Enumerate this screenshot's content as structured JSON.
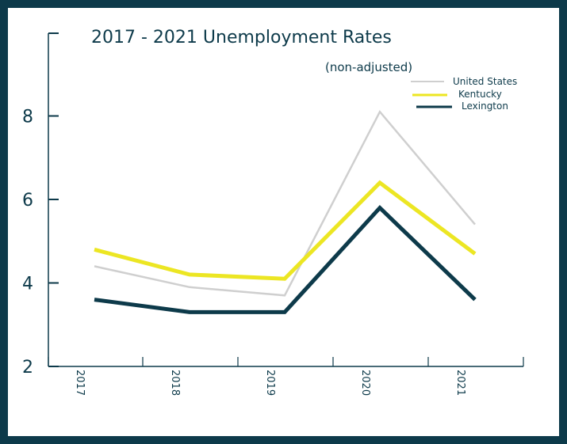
{
  "chart_data": {
    "type": "line",
    "title": "2017 - 2021 Unemployment Rates",
    "subtitle": "(non-adjusted)",
    "categories": [
      "2017",
      "2018",
      "2019",
      "2020",
      "2021"
    ],
    "ylim": [
      2,
      10
    ],
    "yticks": [
      "2",
      "4",
      "6",
      "8"
    ],
    "grid": false,
    "legend_position": "top-right",
    "series": [
      {
        "name": "United States",
        "values": [
          4.4,
          3.9,
          3.7,
          8.1,
          5.4
        ],
        "color": "#cfcfcf"
      },
      {
        "name": "Kentucky",
        "values": [
          4.8,
          4.2,
          4.1,
          6.4,
          4.7
        ],
        "color": "#ece623"
      },
      {
        "name": "Lexington",
        "values": [
          3.6,
          3.3,
          3.3,
          5.8,
          3.6
        ],
        "color": "#0d3a4a"
      }
    ]
  }
}
